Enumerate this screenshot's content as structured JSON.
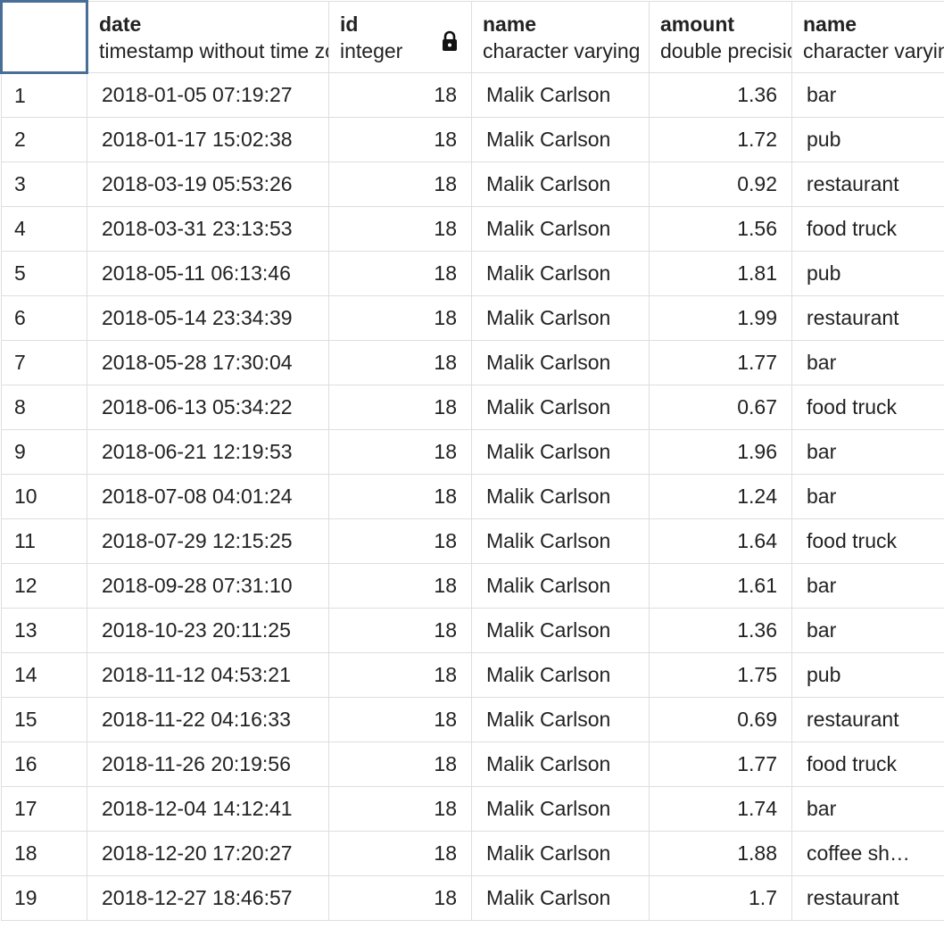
{
  "columns": [
    {
      "name": "date",
      "type": "timestamp without time zone"
    },
    {
      "name": "id",
      "type": "integer",
      "icon": "lock-icon"
    },
    {
      "name": "name",
      "type": "character varying"
    },
    {
      "name": "amount",
      "type": "double precision"
    },
    {
      "name": "name",
      "type": "character varying"
    }
  ],
  "rows": [
    {
      "n": "1",
      "date": "2018-01-05 07:19:27",
      "id": "18",
      "name": "Malik Carlson",
      "amount": "1.36",
      "place": "bar"
    },
    {
      "n": "2",
      "date": "2018-01-17 15:02:38",
      "id": "18",
      "name": "Malik Carlson",
      "amount": "1.72",
      "place": "pub"
    },
    {
      "n": "3",
      "date": "2018-03-19 05:53:26",
      "id": "18",
      "name": "Malik Carlson",
      "amount": "0.92",
      "place": "restaurant"
    },
    {
      "n": "4",
      "date": "2018-03-31 23:13:53",
      "id": "18",
      "name": "Malik Carlson",
      "amount": "1.56",
      "place": "food truck"
    },
    {
      "n": "5",
      "date": "2018-05-11 06:13:46",
      "id": "18",
      "name": "Malik Carlson",
      "amount": "1.81",
      "place": "pub"
    },
    {
      "n": "6",
      "date": "2018-05-14 23:34:39",
      "id": "18",
      "name": "Malik Carlson",
      "amount": "1.99",
      "place": "restaurant"
    },
    {
      "n": "7",
      "date": "2018-05-28 17:30:04",
      "id": "18",
      "name": "Malik Carlson",
      "amount": "1.77",
      "place": "bar"
    },
    {
      "n": "8",
      "date": "2018-06-13 05:34:22",
      "id": "18",
      "name": "Malik Carlson",
      "amount": "0.67",
      "place": "food truck"
    },
    {
      "n": "9",
      "date": "2018-06-21 12:19:53",
      "id": "18",
      "name": "Malik Carlson",
      "amount": "1.96",
      "place": "bar"
    },
    {
      "n": "10",
      "date": "2018-07-08 04:01:24",
      "id": "18",
      "name": "Malik Carlson",
      "amount": "1.24",
      "place": "bar"
    },
    {
      "n": "11",
      "date": "2018-07-29 12:15:25",
      "id": "18",
      "name": "Malik Carlson",
      "amount": "1.64",
      "place": "food truck"
    },
    {
      "n": "12",
      "date": "2018-09-28 07:31:10",
      "id": "18",
      "name": "Malik Carlson",
      "amount": "1.61",
      "place": "bar"
    },
    {
      "n": "13",
      "date": "2018-10-23 20:11:25",
      "id": "18",
      "name": "Malik Carlson",
      "amount": "1.36",
      "place": "bar"
    },
    {
      "n": "14",
      "date": "2018-11-12 04:53:21",
      "id": "18",
      "name": "Malik Carlson",
      "amount": "1.75",
      "place": "pub"
    },
    {
      "n": "15",
      "date": "2018-11-22 04:16:33",
      "id": "18",
      "name": "Malik Carlson",
      "amount": "0.69",
      "place": "restaurant"
    },
    {
      "n": "16",
      "date": "2018-11-26 20:19:56",
      "id": "18",
      "name": "Malik Carlson",
      "amount": "1.77",
      "place": "food truck"
    },
    {
      "n": "17",
      "date": "2018-12-04 14:12:41",
      "id": "18",
      "name": "Malik Carlson",
      "amount": "1.74",
      "place": "bar"
    },
    {
      "n": "18",
      "date": "2018-12-20 17:20:27",
      "id": "18",
      "name": "Malik Carlson",
      "amount": "1.88",
      "place": "coffee sh…"
    },
    {
      "n": "19",
      "date": "2018-12-27 18:46:57",
      "id": "18",
      "name": "Malik Carlson",
      "amount": "1.7",
      "place": "restaurant"
    }
  ],
  "colors": {
    "grid_line": "#dedede",
    "selection_border": "#4a6f96",
    "text": "#222222"
  }
}
